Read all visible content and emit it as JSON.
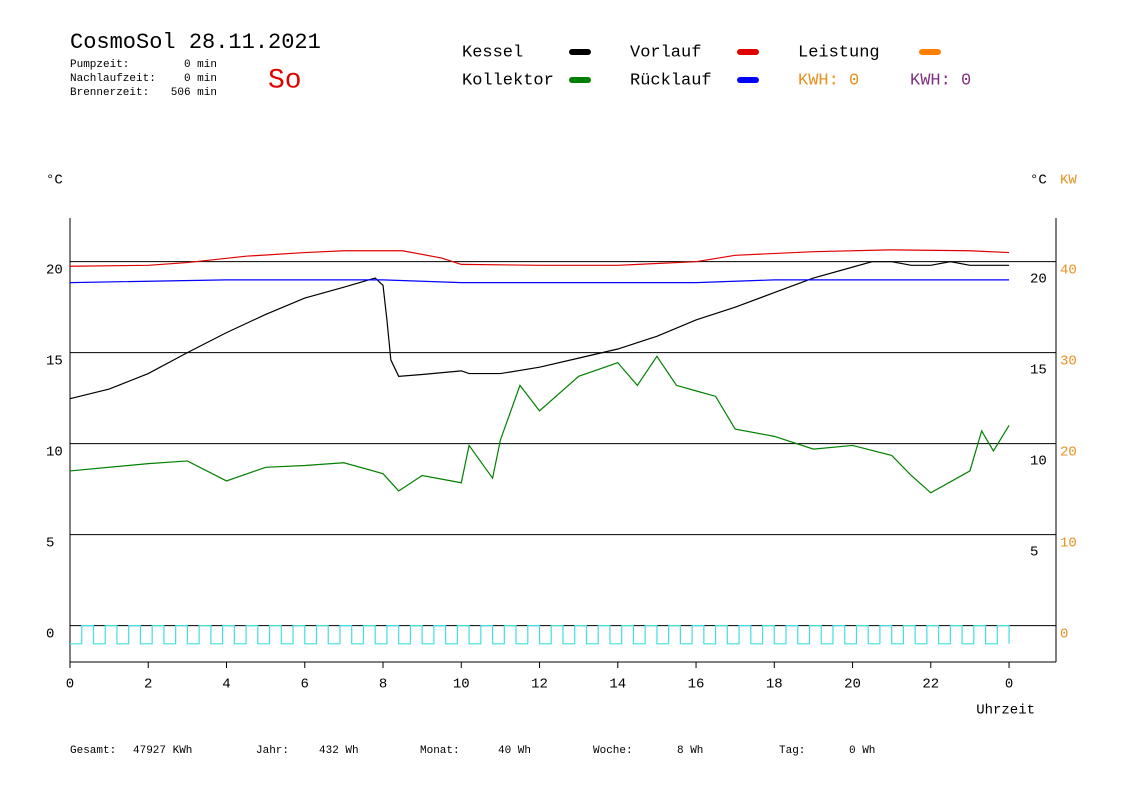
{
  "header": {
    "title": "CosmoSol 28.11.2021",
    "day": "So",
    "stats": [
      {
        "label": "Pumpzeit:",
        "value": "0 min"
      },
      {
        "label": "Nachlaufzeit:",
        "value": "0 min"
      },
      {
        "label": "Brennerzeit:",
        "value": "506 min"
      }
    ]
  },
  "chart_data": {
    "type": "line",
    "y_label": "°C",
    "y2_label_c": "°C",
    "y2_label": "KW",
    "x_label": "Uhrzeit",
    "xlim": [
      0,
      25.2
    ],
    "xticks": [
      0,
      2,
      4,
      6,
      8,
      10,
      12,
      14,
      16,
      18,
      20,
      22,
      {
        "value": 24,
        "label": "0"
      }
    ],
    "ylim": [
      -2,
      22.4
    ],
    "yticks": [
      0,
      5,
      10,
      15,
      20
    ],
    "yticks_right": [
      5,
      10,
      15,
      20
    ],
    "y2lim": [
      -4,
      44.8
    ],
    "y2ticks": [
      0,
      10,
      20,
      30,
      40
    ],
    "grid": true,
    "series": [
      {
        "name": "Kessel",
        "color": "#000000",
        "x": [
          0,
          1,
          2,
          3,
          4,
          5,
          6,
          7,
          7.8,
          8.0,
          8.1,
          8.2,
          8.4,
          9,
          10,
          10.2,
          11,
          12,
          13,
          14,
          15,
          16,
          17,
          18,
          19,
          20,
          20.5,
          21,
          21.5,
          22,
          22.5,
          23,
          24
        ],
        "values": [
          12.47,
          13.0,
          13.85,
          15.0,
          16.1,
          17.1,
          18.0,
          18.6,
          19.1,
          18.7,
          16.8,
          14.6,
          13.7,
          13.8,
          14.0,
          13.85,
          13.85,
          14.2,
          14.7,
          15.2,
          15.9,
          16.8,
          17.5,
          18.3,
          19.1,
          19.7,
          20.0,
          20.0,
          19.8,
          19.8,
          20.0,
          19.8,
          19.8
        ]
      },
      {
        "name": "Kollektor",
        "color": "#008000",
        "x": [
          0,
          2,
          3,
          4,
          5,
          6,
          7,
          8,
          8.4,
          9,
          10,
          10.2,
          10.8,
          11,
          11.5,
          12,
          13,
          14,
          14.5,
          15,
          15.5,
          16,
          16.5,
          17,
          18,
          19,
          20,
          21,
          21.5,
          22,
          23,
          23.3,
          23.6,
          24
        ],
        "values": [
          8.5,
          8.9,
          9.05,
          7.95,
          8.7,
          8.8,
          8.95,
          8.35,
          7.4,
          8.25,
          7.85,
          9.9,
          8.1,
          10.2,
          13.2,
          11.8,
          13.7,
          14.45,
          13.2,
          14.8,
          13.2,
          12.9,
          12.6,
          10.8,
          10.4,
          9.7,
          9.9,
          9.35,
          8.25,
          7.3,
          8.5,
          10.7,
          9.6,
          11.0
        ]
      },
      {
        "name": "Vorlauf",
        "color": "#e00000",
        "x": [
          0,
          2,
          3,
          4.5,
          6,
          7,
          8.5,
          9.5,
          10,
          12,
          14,
          16,
          17,
          19,
          21,
          23,
          24
        ],
        "values": [
          19.75,
          19.8,
          19.95,
          20.3,
          20.5,
          20.6,
          20.6,
          20.2,
          19.85,
          19.8,
          19.8,
          20.0,
          20.35,
          20.55,
          20.65,
          20.6,
          20.5
        ]
      },
      {
        "name": "Rücklauf",
        "color": "#0000ff",
        "x": [
          0,
          4,
          8,
          10,
          16,
          18,
          24
        ],
        "values": [
          18.85,
          19.0,
          19.0,
          18.85,
          18.85,
          19.0,
          19.0
        ]
      },
      {
        "name": "Leistung",
        "color": "#ff8000",
        "axis": "y2",
        "x": [],
        "values": []
      },
      {
        "color": "#40e0e0",
        "step": true,
        "x": [
          0,
          0.3,
          0.6,
          0.9,
          1.2,
          1.5,
          1.8,
          2.1,
          2.4,
          2.7,
          3,
          3.3,
          3.6,
          3.9,
          4.2,
          4.5,
          4.8,
          5.1,
          5.4,
          5.7,
          6,
          6.3,
          6.6,
          6.9,
          7.2,
          7.5,
          7.8,
          8.1,
          8.4,
          8.7,
          9,
          9.3,
          9.6,
          9.9,
          10.2,
          10.5,
          10.8,
          11.1,
          11.4,
          11.7,
          12,
          12.3,
          12.6,
          12.9,
          13.2,
          13.5,
          13.8,
          14.1,
          14.4,
          14.7,
          15,
          15.3,
          15.6,
          15.9,
          16.2,
          16.5,
          16.8,
          17.1,
          17.4,
          17.7,
          18,
          18.3,
          18.6,
          18.9,
          19.2,
          19.5,
          19.8,
          20.1,
          20.4,
          20.7,
          21,
          21.3,
          21.6,
          21.9,
          22.2,
          22.5,
          22.8,
          23.1,
          23.4,
          23.7,
          24
        ],
        "values": [
          -1,
          0,
          -1,
          0,
          -1,
          0,
          -1,
          0,
          -1,
          0,
          -1,
          0,
          -1,
          0,
          -1,
          0,
          -1,
          0,
          -1,
          0,
          -1,
          0,
          -1,
          0,
          -1,
          0,
          -1,
          0,
          -1,
          0,
          -1,
          0,
          -1,
          0,
          -1,
          0,
          -1,
          0,
          -1,
          0,
          -1,
          0,
          -1,
          0,
          -1,
          0,
          -1,
          0,
          -1,
          0,
          -1,
          0,
          -1,
          0,
          -1,
          0,
          -1,
          0,
          -1,
          0,
          -1,
          0,
          -1,
          0,
          -1,
          0,
          -1,
          0,
          -1,
          0,
          -1,
          0,
          -1,
          0,
          -1,
          0,
          -1,
          0,
          -1,
          0,
          -1
        ]
      }
    ],
    "kwh": [
      {
        "label": "KWH: 0",
        "color": "#e89020"
      },
      {
        "label": "KWH: 0",
        "color": "#803080"
      }
    ]
  },
  "footer": [
    {
      "label": "Gesamt:",
      "value": "47927 KWh"
    },
    {
      "label": "Jahr:",
      "value": "432 Wh"
    },
    {
      "label": "Monat:",
      "value": "40 Wh"
    },
    {
      "label": "Woche:",
      "value": "8 Wh"
    },
    {
      "label": "Tag:",
      "value": "0 Wh"
    }
  ]
}
